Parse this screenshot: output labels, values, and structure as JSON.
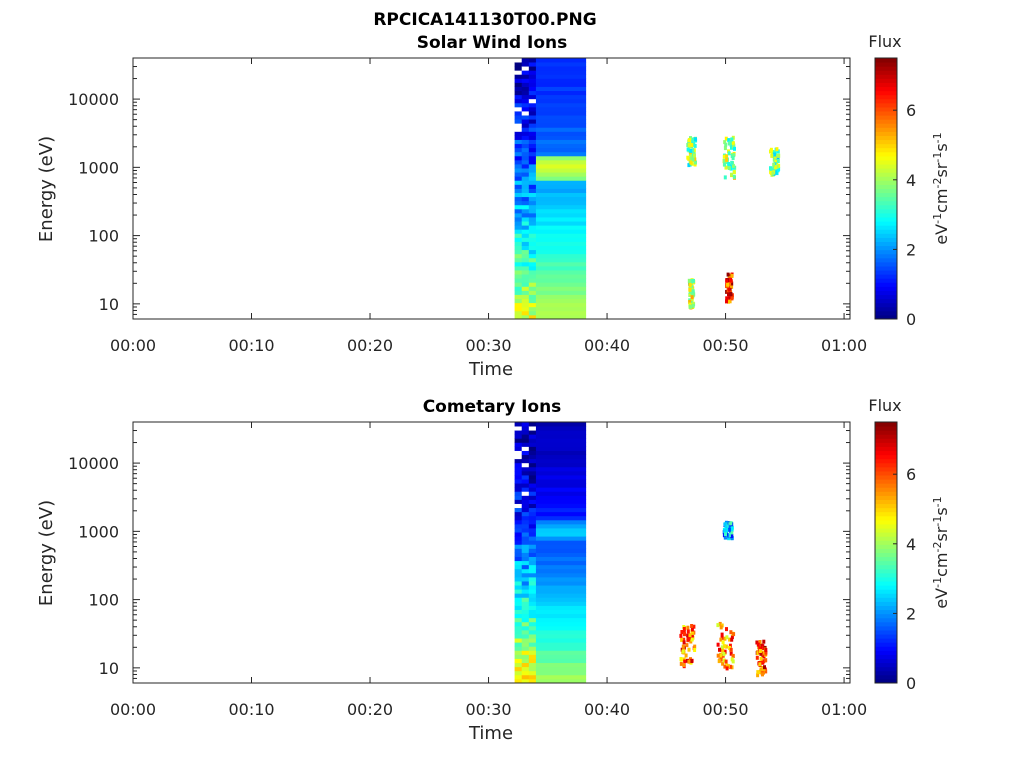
{
  "figure_title": "RPCICA141130T00.PNG",
  "chart_data": [
    {
      "type": "heatmap",
      "title": "Solar Wind Ions",
      "xlabel": "Time",
      "ylabel": "Energy (eV)",
      "x_ticks": [
        "00:00",
        "00:10",
        "00:20",
        "00:30",
        "00:40",
        "00:50",
        "01:00"
      ],
      "x_range_minutes": [
        0,
        60.5
      ],
      "y_scale": "log",
      "y_ticks": [
        "10",
        "100",
        "1000",
        "10000"
      ],
      "y_range": [
        6,
        40000
      ],
      "colorbar": {
        "title": "Flux",
        "label": "eV-1cm-2sr-1s-1",
        "range": [
          0,
          7.5
        ],
        "ticks": [
          "0",
          "2",
          "4",
          "6"
        ],
        "colormap": "jet"
      },
      "regions": [
        {
          "t": [
            32.2,
            34
          ],
          "e": [
            6,
            40000
          ],
          "low": 0.6,
          "high": 4.5,
          "streaks": true
        },
        {
          "t": [
            34,
            38.2
          ],
          "e": [
            6,
            40000
          ],
          "low": 1.2,
          "high": 4.2,
          "band_e": 1000,
          "band_val": 4.6
        }
      ],
      "blobs": [
        {
          "t": 47.0,
          "e": 1800,
          "dt": 0.35,
          "de": 1.6,
          "val": 3.8
        },
        {
          "t": 50.2,
          "e": 1500,
          "dt": 0.45,
          "de": 2.0,
          "val": 4.0
        },
        {
          "t": 54.0,
          "e": 1300,
          "dt": 0.35,
          "de": 1.6,
          "val": 3.6
        },
        {
          "t": 47.0,
          "e": 15,
          "dt": 0.2,
          "de": 1.6,
          "val": 4.5
        },
        {
          "t": 50.2,
          "e": 18,
          "dt": 0.25,
          "de": 1.6,
          "val": 6.2
        }
      ],
      "blob_seed": 7
    },
    {
      "type": "heatmap",
      "title": "Cometary Ions",
      "xlabel": "Time",
      "ylabel": "Energy (eV)",
      "x_ticks": [
        "00:00",
        "00:10",
        "00:20",
        "00:30",
        "00:40",
        "00:50",
        "01:00"
      ],
      "x_range_minutes": [
        0,
        60.5
      ],
      "y_scale": "log",
      "y_ticks": [
        "10",
        "100",
        "1000",
        "10000"
      ],
      "y_range": [
        6,
        40000
      ],
      "colorbar": {
        "title": "Flux",
        "label": "eV-1cm-2sr-1s-1",
        "range": [
          0,
          7.5
        ],
        "ticks": [
          "0",
          "2",
          "4",
          "6"
        ],
        "colormap": "jet"
      },
      "regions": [
        {
          "t": [
            32.2,
            34
          ],
          "e": [
            6,
            40000
          ],
          "low": 0.2,
          "high": 5.0,
          "streaks": true
        },
        {
          "t": [
            34,
            38.2
          ],
          "e": [
            6,
            40000
          ],
          "low": 0.4,
          "high": 4.0,
          "band_e": 1000,
          "band_val": 2.6
        }
      ],
      "blobs": [
        {
          "t": 50.1,
          "e": 1100,
          "dt": 0.35,
          "de": 1.3,
          "val": 2.2
        },
        {
          "t": 46.7,
          "e": 22,
          "dt": 0.6,
          "de": 2.0,
          "val": 5.8
        },
        {
          "t": 49.9,
          "e": 22,
          "dt": 0.7,
          "de": 2.2,
          "val": 5.5
        },
        {
          "t": 52.9,
          "e": 15,
          "dt": 0.4,
          "de": 1.8,
          "val": 6.2
        }
      ],
      "blob_seed": 13
    }
  ]
}
